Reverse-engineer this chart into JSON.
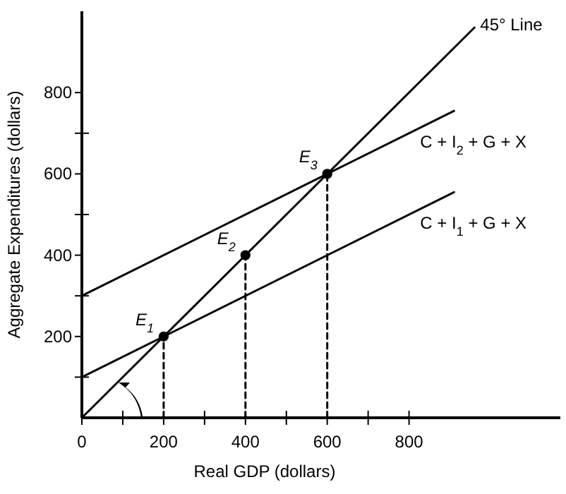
{
  "chart_data": {
    "type": "line",
    "xlabel": "Real GDP (dollars)",
    "ylabel": "Aggregate Expenditures (dollars)",
    "xlim": [
      0,
      1170
    ],
    "ylim": [
      0,
      1000
    ],
    "xticks": [
      0,
      {
        "value": 100,
        "label": null
      },
      200,
      {
        "value": 300,
        "label": null
      },
      400,
      {
        "value": 500,
        "label": null
      },
      600,
      {
        "value": 700,
        "label": null
      },
      800
    ],
    "yticks": [
      {
        "value": 100,
        "label": null
      },
      200,
      {
        "value": 300,
        "label": null
      },
      400,
      {
        "value": 500,
        "label": null
      },
      600,
      {
        "value": 700,
        "label": null
      },
      800
    ],
    "grid": false,
    "legend": false,
    "marker": "none",
    "line_style": "solid",
    "series": [
      {
        "name": "45° Line",
        "color": "#000000",
        "x": [
          0,
          960
        ],
        "values": [
          0,
          960
        ]
      },
      {
        "name": "C + I$_{2}$ + G + X",
        "color": "#000000",
        "x": [
          0,
          910
        ],
        "values": [
          300,
          755
        ]
      },
      {
        "name": "C + I$_{1}$ + G + X",
        "color": "#000000",
        "x": [
          0,
          910
        ],
        "values": [
          100,
          555
        ]
      },
      {
        "type": "line",
        "line_style": "dashed",
        "color": "#000000",
        "x": [
          200,
          200
        ],
        "values": [
          0,
          200
        ]
      },
      {
        "type": "line",
        "line_style": "dashed",
        "color": "#000000",
        "x": [
          400,
          400
        ],
        "values": [
          0,
          400
        ]
      },
      {
        "type": "line",
        "line_style": "dashed",
        "color": "#000000",
        "x": [
          600,
          600
        ],
        "values": [
          0,
          600
        ]
      },
      {
        "type": "scatter",
        "marker": "circle",
        "color": "#000000",
        "x": [
          200,
          400,
          600
        ],
        "values": [
          200,
          400,
          600
        ]
      }
    ],
    "annotations": [
      {
        "text": "E$_{1}$",
        "x": 200,
        "y": 200
      },
      {
        "text": "E$_{2}$",
        "x": 400,
        "y": 400
      },
      {
        "text": "E$_{3}$",
        "x": 600,
        "y": 600
      }
    ]
  }
}
